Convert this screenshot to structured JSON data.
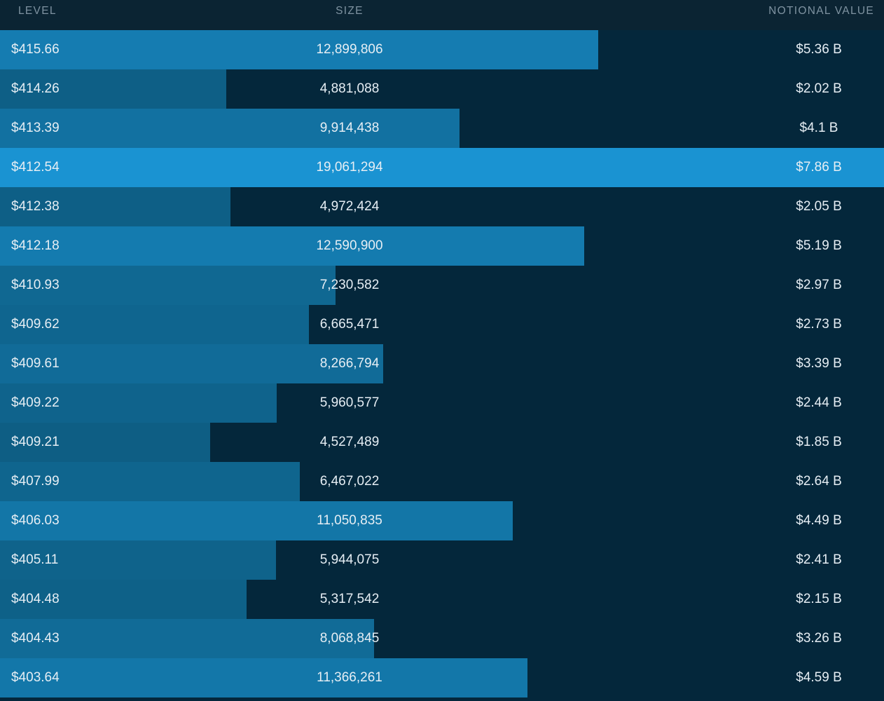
{
  "header": {
    "level": "LEVEL",
    "size": "SIZE",
    "notional": "NOTIONAL VALUE"
  },
  "colors": {
    "background": "#04273b",
    "header_background": "#0b2433",
    "bar_dark": "#0d5b80",
    "bar_light": "#1a93d2"
  },
  "max_size": 19061294,
  "rows": [
    {
      "level": "$415.66",
      "size": "12,899,806",
      "size_value": 12899806,
      "notional": "$5.36 B"
    },
    {
      "level": "$414.26",
      "size": "4,881,088",
      "size_value": 4881088,
      "notional": "$2.02 B"
    },
    {
      "level": "$413.39",
      "size": "9,914,438",
      "size_value": 9914438,
      "notional": "$4.1 B"
    },
    {
      "level": "$412.54",
      "size": "19,061,294",
      "size_value": 19061294,
      "notional": "$7.86 B"
    },
    {
      "level": "$412.38",
      "size": "4,972,424",
      "size_value": 4972424,
      "notional": "$2.05 B"
    },
    {
      "level": "$412.18",
      "size": "12,590,900",
      "size_value": 12590900,
      "notional": "$5.19 B"
    },
    {
      "level": "$410.93",
      "size": "7,230,582",
      "size_value": 7230582,
      "notional": "$2.97 B"
    },
    {
      "level": "$409.62",
      "size": "6,665,471",
      "size_value": 6665471,
      "notional": "$2.73 B"
    },
    {
      "level": "$409.61",
      "size": "8,266,794",
      "size_value": 8266794,
      "notional": "$3.39 B"
    },
    {
      "level": "$409.22",
      "size": "5,960,577",
      "size_value": 5960577,
      "notional": "$2.44 B"
    },
    {
      "level": "$409.21",
      "size": "4,527,489",
      "size_value": 4527489,
      "notional": "$1.85 B"
    },
    {
      "level": "$407.99",
      "size": "6,467,022",
      "size_value": 6467022,
      "notional": "$2.64 B"
    },
    {
      "level": "$406.03",
      "size": "11,050,835",
      "size_value": 11050835,
      "notional": "$4.49 B"
    },
    {
      "level": "$405.11",
      "size": "5,944,075",
      "size_value": 5944075,
      "notional": "$2.41 B"
    },
    {
      "level": "$404.48",
      "size": "5,317,542",
      "size_value": 5317542,
      "notional": "$2.15 B"
    },
    {
      "level": "$404.43",
      "size": "8,068,845",
      "size_value": 8068845,
      "notional": "$3.26 B"
    },
    {
      "level": "$403.64",
      "size": "11,366,261",
      "size_value": 11366261,
      "notional": "$4.59 B"
    }
  ]
}
